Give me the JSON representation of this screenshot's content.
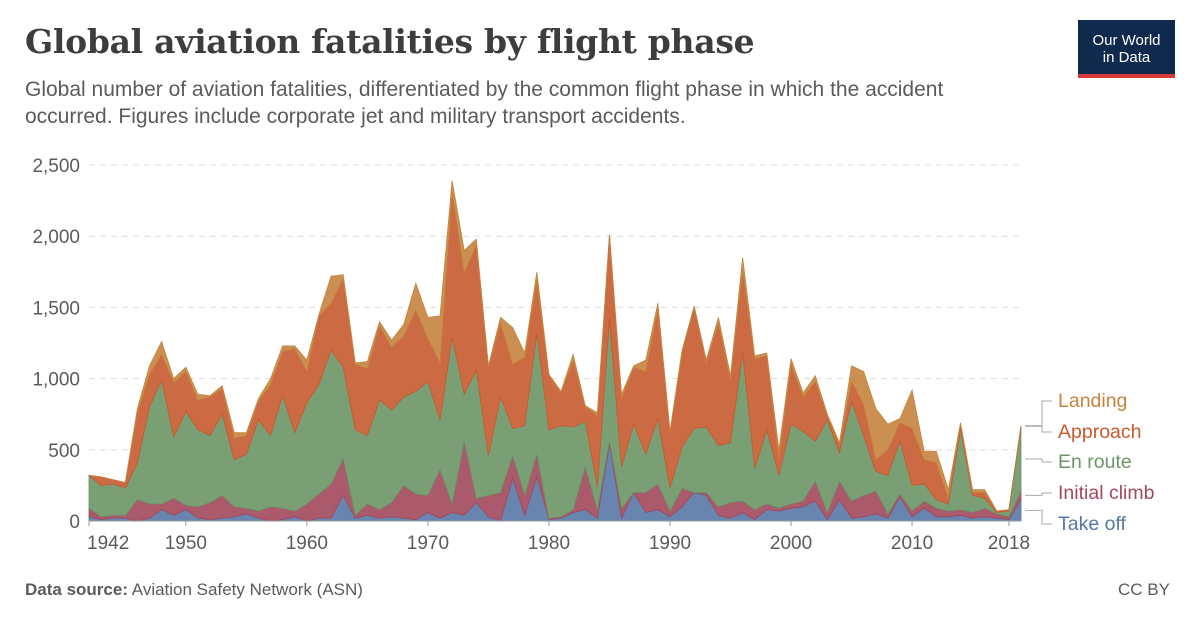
{
  "header": {
    "title": "Global aviation fatalities by flight phase",
    "subtitle": "Global number of aviation fatalities, differentiated by the common flight phase in which the accident occurred. Figures include corporate jet and military transport accidents."
  },
  "logo": {
    "line1": "Our World",
    "line2": "in Data"
  },
  "footer": {
    "source_label": "Data source:",
    "source_text": "Aviation Safety Network (ASN)",
    "license": "CC BY"
  },
  "chart_data": {
    "type": "area",
    "stacked": true,
    "x": [
      1942,
      1943,
      1944,
      1945,
      1946,
      1947,
      1948,
      1949,
      1950,
      1951,
      1952,
      1953,
      1954,
      1955,
      1956,
      1957,
      1958,
      1959,
      1960,
      1961,
      1962,
      1963,
      1964,
      1965,
      1966,
      1967,
      1968,
      1969,
      1970,
      1971,
      1972,
      1973,
      1974,
      1975,
      1976,
      1977,
      1978,
      1979,
      1980,
      1981,
      1982,
      1983,
      1984,
      1985,
      1986,
      1987,
      1988,
      1989,
      1990,
      1991,
      1992,
      1993,
      1994,
      1995,
      1996,
      1997,
      1998,
      1999,
      2000,
      2001,
      2002,
      2003,
      2004,
      2005,
      2006,
      2007,
      2008,
      2009,
      2010,
      2011,
      2012,
      2013,
      2014,
      2015,
      2016,
      2017,
      2018,
      2019
    ],
    "series": [
      {
        "name": "Take off",
        "color": "#5778a6",
        "values": [
          30,
          10,
          20,
          20,
          0,
          20,
          80,
          40,
          80,
          20,
          10,
          20,
          30,
          50,
          20,
          0,
          10,
          30,
          0,
          20,
          20,
          180,
          20,
          40,
          20,
          30,
          20,
          10,
          60,
          20,
          60,
          40,
          130,
          30,
          0,
          300,
          40,
          310,
          10,
          20,
          60,
          80,
          20,
          540,
          20,
          200,
          60,
          80,
          30,
          100,
          200,
          180,
          40,
          20,
          60,
          10,
          80,
          70,
          90,
          100,
          140,
          10,
          150,
          20,
          30,
          50,
          20,
          170,
          30,
          90,
          30,
          30,
          40,
          20,
          30,
          20,
          10,
          150
        ]
      },
      {
        "name": "Initial climb",
        "color": "#a2485c",
        "values": [
          60,
          20,
          20,
          20,
          150,
          100,
          40,
          120,
          30,
          80,
          120,
          160,
          70,
          40,
          50,
          100,
          80,
          40,
          120,
          170,
          240,
          260,
          20,
          80,
          60,
          100,
          230,
          180,
          120,
          340,
          60,
          520,
          30,
          150,
          200,
          160,
          140,
          160,
          10,
          10,
          20,
          300,
          60,
          20,
          70,
          0,
          140,
          180,
          40,
          130,
          0,
          20,
          60,
          110,
          80,
          70,
          40,
          20,
          30,
          40,
          140,
          50,
          130,
          120,
          150,
          160,
          30,
          20,
          40,
          50,
          60,
          40,
          40,
          40,
          60,
          30,
          20,
          60
        ]
      },
      {
        "name": "En route",
        "color": "#6b9566",
        "values": [
          230,
          220,
          220,
          190,
          260,
          680,
          870,
          430,
          660,
          540,
          470,
          570,
          330,
          380,
          640,
          500,
          790,
          550,
          710,
          770,
          940,
          640,
          600,
          480,
          770,
          650,
          620,
          720,
          800,
          350,
          1170,
          330,
          900,
          280,
          670,
          190,
          490,
          850,
          620,
          640,
          580,
          320,
          160,
          860,
          290,
          480,
          270,
          460,
          160,
          290,
          450,
          460,
          430,
          420,
          1040,
          290,
          520,
          230,
          560,
          490,
          280,
          650,
          200,
          700,
          420,
          140,
          270,
          370,
          180,
          120,
          60,
          50,
          560,
          120,
          70,
          10,
          40,
          450
        ]
      },
      {
        "name": "Approach",
        "color": "#c75a2f",
        "values": [
          0,
          60,
          30,
          40,
          350,
          230,
          180,
          380,
          280,
          210,
          270,
          180,
          150,
          130,
          130,
          360,
          310,
          590,
          220,
          480,
          330,
          620,
          460,
          470,
          520,
          440,
          430,
          570,
          300,
          400,
          1020,
          850,
          880,
          620,
          520,
          450,
          480,
          370,
          380,
          230,
          470,
          100,
          500,
          590,
          480,
          400,
          580,
          770,
          390,
          660,
          850,
          450,
          860,
          440,
          580,
          770,
          520,
          120,
          420,
          240,
          420,
          30,
          50,
          140,
          220,
          80,
          180,
          130,
          400,
          170,
          260,
          40,
          40,
          20,
          40,
          10,
          10,
          10
        ]
      },
      {
        "name": "Landing",
        "color": "#c5843e",
        "values": [
          0,
          0,
          0,
          0,
          30,
          60,
          90,
          30,
          30,
          40,
          10,
          20,
          40,
          20,
          20,
          40,
          40,
          20,
          80,
          10,
          190,
          30,
          10,
          50,
          30,
          50,
          80,
          190,
          150,
          330,
          80,
          160,
          40,
          10,
          40,
          260,
          30,
          60,
          10,
          10,
          40,
          10,
          20,
          0,
          30,
          10,
          80,
          40,
          10,
          20,
          10,
          20,
          40,
          30,
          90,
          20,
          20,
          60,
          40,
          30,
          40,
          10,
          20,
          110,
          230,
          360,
          180,
          30,
          270,
          60,
          80,
          60,
          10,
          20,
          20,
          0,
          0,
          0
        ]
      }
    ],
    "xticks": [
      "1942",
      "1950",
      "1960",
      "1970",
      "1980",
      "1990",
      "2000",
      "2010",
      "2018"
    ],
    "yticks": [
      "0",
      "500",
      "1,000",
      "1,500",
      "2,000",
      "2,500"
    ],
    "ylim": [
      0,
      2500
    ],
    "grid": true,
    "legend_placement": "right"
  }
}
